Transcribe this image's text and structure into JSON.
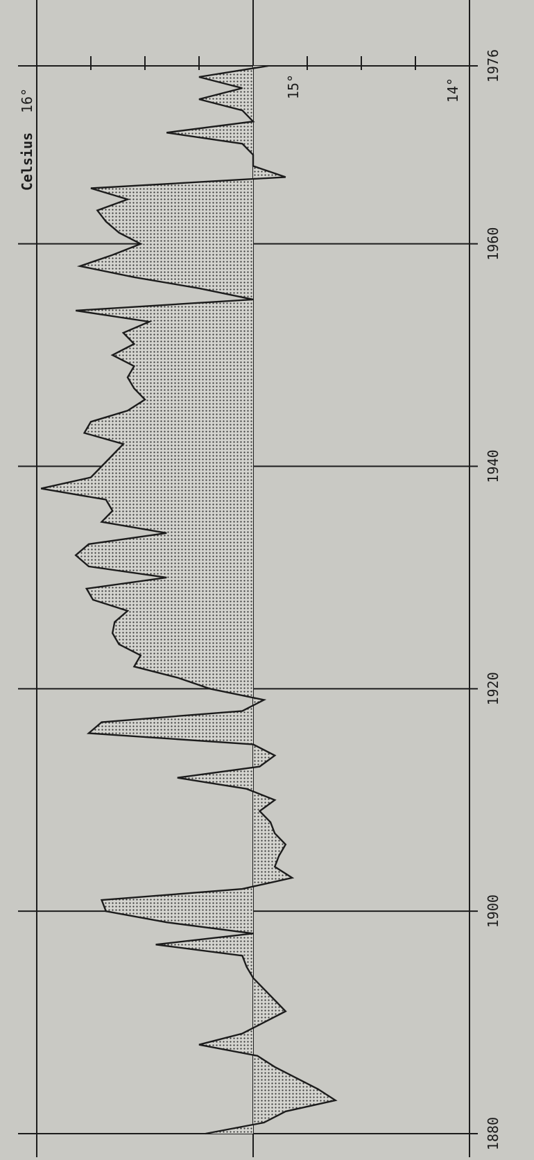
{
  "chart_data": {
    "type": "area",
    "title": "",
    "xlabel": "",
    "ylabel": "Celsius",
    "baseline": 15.0,
    "xlim": [
      1880,
      1976
    ],
    "ylim": [
      13.75,
      16.25
    ],
    "x_ticks": [
      1880,
      1900,
      1920,
      1940,
      1960,
      1976
    ],
    "x_tick_labels": [
      "1880",
      "1900",
      "1920",
      "1940",
      "1960",
      "1976"
    ],
    "y_ticks": [
      14,
      15,
      16
    ],
    "y_tick_labels": [
      "14°",
      "15°",
      "16°"
    ],
    "grid": true,
    "colors": {
      "background": "#c9c9c4",
      "line": "#1c1c1c",
      "fill_dots": "#3a3a3a"
    },
    "series": [
      {
        "values": [
          [
            1880,
            15.22
          ],
          [
            1881,
            14.95
          ],
          [
            1882,
            14.85
          ],
          [
            1883,
            14.62
          ],
          [
            1884,
            14.7
          ],
          [
            1885,
            14.8
          ],
          [
            1886,
            14.9
          ],
          [
            1887,
            14.98
          ],
          [
            1888,
            15.25
          ],
          [
            1889,
            15.05
          ],
          [
            1890,
            14.95
          ],
          [
            1891,
            14.85
          ],
          [
            1892,
            14.9
          ],
          [
            1893,
            14.95
          ],
          [
            1894,
            15.0
          ],
          [
            1895,
            15.03
          ],
          [
            1896,
            15.05
          ],
          [
            1897,
            15.45
          ],
          [
            1898,
            15.0
          ],
          [
            1899,
            15.4
          ],
          [
            1900,
            15.68
          ],
          [
            1901,
            15.7
          ],
          [
            1902,
            15.05
          ],
          [
            1903,
            14.82
          ],
          [
            1904,
            14.9
          ],
          [
            1905,
            14.88
          ],
          [
            1906,
            14.85
          ],
          [
            1907,
            14.9
          ],
          [
            1908,
            14.92
          ],
          [
            1909,
            14.97
          ],
          [
            1910,
            14.9
          ],
          [
            1911,
            15.03
          ],
          [
            1912,
            15.35
          ],
          [
            1913,
            14.97
          ],
          [
            1914,
            14.9
          ],
          [
            1915,
            15.0
          ],
          [
            1916,
            15.76
          ],
          [
            1917,
            15.7
          ],
          [
            1918,
            15.05
          ],
          [
            1919,
            14.95
          ],
          [
            1920,
            15.2
          ],
          [
            1921,
            15.35
          ],
          [
            1922,
            15.55
          ],
          [
            1923,
            15.52
          ],
          [
            1924,
            15.62
          ],
          [
            1925,
            15.65
          ],
          [
            1926,
            15.64
          ],
          [
            1927,
            15.58
          ],
          [
            1928,
            15.74
          ],
          [
            1929,
            15.77
          ],
          [
            1930,
            15.4
          ],
          [
            1931,
            15.76
          ],
          [
            1932,
            15.82
          ],
          [
            1933,
            15.76
          ],
          [
            1934,
            15.4
          ],
          [
            1935,
            15.7
          ],
          [
            1936,
            15.65
          ],
          [
            1937,
            15.68
          ],
          [
            1938,
            15.98
          ],
          [
            1939,
            15.75
          ],
          [
            1940,
            15.7
          ],
          [
            1941,
            15.65
          ],
          [
            1942,
            15.6
          ],
          [
            1943,
            15.78
          ],
          [
            1944,
            15.75
          ],
          [
            1945,
            15.58
          ],
          [
            1946,
            15.5
          ],
          [
            1947,
            15.55
          ],
          [
            1948,
            15.58
          ],
          [
            1949,
            15.55
          ],
          [
            1950,
            15.65
          ],
          [
            1951,
            15.55
          ],
          [
            1952,
            15.6
          ],
          [
            1953,
            15.48
          ],
          [
            1954,
            15.82
          ],
          [
            1955,
            15.0
          ],
          [
            1956,
            15.25
          ],
          [
            1957,
            15.55
          ],
          [
            1958,
            15.8
          ],
          [
            1959,
            15.65
          ],
          [
            1960,
            15.52
          ],
          [
            1961,
            15.62
          ],
          [
            1962,
            15.68
          ],
          [
            1963,
            15.72
          ],
          [
            1964,
            15.58
          ],
          [
            1965,
            15.75
          ],
          [
            1966,
            14.85
          ],
          [
            1967,
            15.0
          ],
          [
            1968,
            15.0
          ],
          [
            1969,
            15.05
          ],
          [
            1970,
            15.4
          ],
          [
            1971,
            15.0
          ],
          [
            1972,
            15.05
          ],
          [
            1973,
            15.25
          ],
          [
            1974,
            15.05
          ],
          [
            1975,
            15.25
          ],
          [
            1976,
            14.93
          ]
        ]
      }
    ]
  }
}
